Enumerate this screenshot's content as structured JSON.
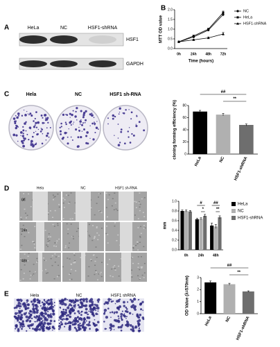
{
  "figure": {
    "panel_labels": [
      "A",
      "B",
      "C",
      "D",
      "E"
    ],
    "blot": {
      "lanes": [
        "HeLa",
        "NC",
        "HSF1-shRNA"
      ],
      "proteins": [
        "HSF1",
        "GAPDH"
      ]
    },
    "colony": {
      "groups": [
        "Hela",
        "NC",
        "HSF1 sh-RNA"
      ]
    },
    "wound": {
      "groups": [
        "Hela",
        "NC",
        "HSF1 sh-RNA"
      ],
      "times": [
        "0h",
        "24h",
        "48h"
      ]
    },
    "transwell": {
      "groups": [
        "Hela",
        "NC",
        "HSF1 shRNA"
      ]
    }
  },
  "chart_data": [
    {
      "type": "line",
      "x_label": "Time (hours)",
      "y_label": "MTT OD value",
      "categories": [
        "0h",
        "24h",
        "48h",
        "72h"
      ],
      "ylim": [
        0,
        2
      ],
      "yticks": [
        {
          "value": 0,
          "label": "0.0"
        },
        0.5,
        {
          "value": 1,
          "label": "1.0"
        },
        1.5,
        {
          "value": 2,
          "label": "2.0"
        }
      ],
      "series": [
        {
          "name": "NC",
          "color": "#000000",
          "marker": "circle",
          "values": [
            0.35,
            0.6,
            0.95,
            1.75
          ],
          "errors": [
            0.03,
            0.04,
            0.05,
            0.08
          ]
        },
        {
          "name": "HeLa",
          "color": "#000000",
          "marker": "square",
          "values": [
            0.35,
            0.65,
            1.0,
            1.85
          ],
          "errors": [
            0.03,
            0.04,
            0.05,
            0.08
          ]
        },
        {
          "name": "HSF1-shRNA",
          "color": "#000000",
          "marker": "triangle",
          "values": [
            0.35,
            0.45,
            0.55,
            0.75
          ],
          "errors": [
            0.03,
            0.04,
            0.05,
            0.08
          ]
        }
      ]
    },
    {
      "type": "bar",
      "y_label": "cloning forming efficiency (%)",
      "categories": [
        "HeLa",
        "NC",
        "HSF1-shRNA"
      ],
      "values": [
        70,
        65,
        48
      ],
      "errors": [
        2,
        2,
        1.5
      ],
      "colors": [
        "#000000",
        "#b0b0b0",
        "#6e6e6e"
      ],
      "ylim": [
        0,
        80
      ],
      "yticks": [
        0,
        20,
        40,
        60,
        80
      ],
      "annotations": [
        "##",
        "**"
      ]
    },
    {
      "type": "grouped_bar",
      "y_label": "mm",
      "categories": [
        "0h",
        "24h",
        "48h"
      ],
      "ylim": [
        0,
        1
      ],
      "yticks": [
        {
          "value": 0,
          "label": "0.0"
        },
        0.2,
        0.4,
        0.6,
        0.8,
        {
          "value": 1,
          "label": "1.0"
        }
      ],
      "series": [
        {
          "name": "HeLa",
          "color": "#000000",
          "values": [
            0.8,
            0.63,
            0.5
          ],
          "errors": [
            0.02,
            0.02,
            0.05
          ]
        },
        {
          "name": "NC",
          "color": "#b0b0b0",
          "values": [
            0.8,
            0.64,
            0.48
          ],
          "errors": [
            0.02,
            0.02,
            0.04
          ]
        },
        {
          "name": "HSF1-shRNA",
          "color": "#6e6e6e",
          "values": [
            0.79,
            0.7,
            0.67
          ],
          "errors": [
            0.02,
            0.03,
            0.03
          ]
        }
      ],
      "annotations": [
        "#",
        "*",
        "##",
        "**"
      ]
    },
    {
      "type": "bar",
      "y_label": "OD Value (λ=570nm)",
      "categories": [
        "HeLa",
        "NC",
        "HSF1-shRNA"
      ],
      "values": [
        2.6,
        2.45,
        1.85
      ],
      "errors": [
        0.12,
        0.08,
        0.05
      ],
      "colors": [
        "#000000",
        "#b0b0b0",
        "#6e6e6e"
      ],
      "ylim": [
        0,
        3
      ],
      "yticks": [
        0,
        1,
        2,
        3
      ],
      "annotations": [
        "##",
        "**"
      ]
    }
  ]
}
